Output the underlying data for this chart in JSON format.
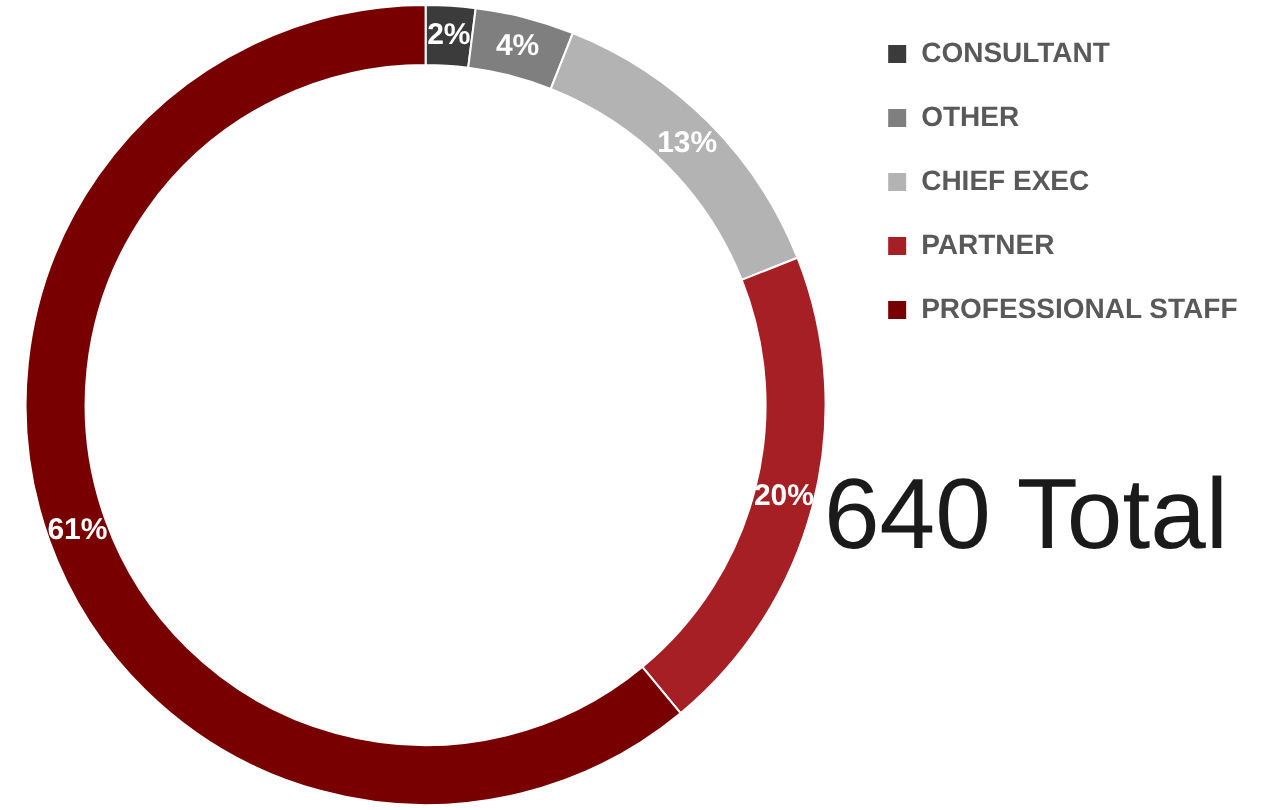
{
  "chart_data": {
    "type": "donut",
    "categories": [
      "CONSULTANT",
      "OTHER",
      "CHIEF EXEC",
      "PARTNER",
      "PROFESSIONAL STAFF"
    ],
    "values": [
      2,
      4,
      13,
      20,
      61
    ],
    "colors": [
      "#3b3b3b",
      "#7f7f7f",
      "#b3b3b3",
      "#a51f24",
      "#780000"
    ],
    "value_labels": [
      "2%",
      "4%",
      "13%",
      "20%",
      "61%"
    ],
    "legend": "top right",
    "annotations": [
      "640 Total"
    ]
  }
}
